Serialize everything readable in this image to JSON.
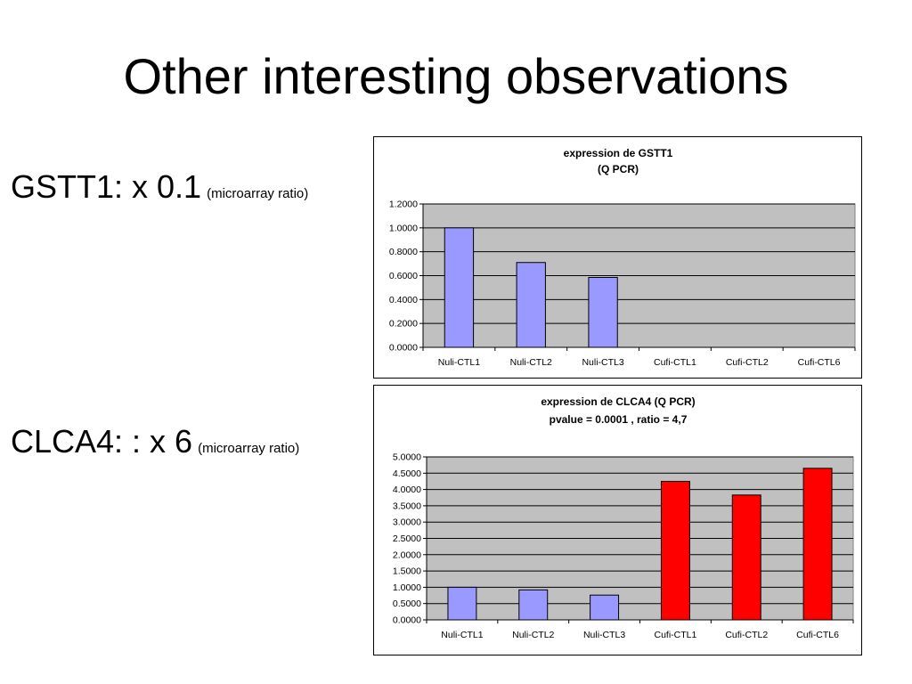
{
  "slide": {
    "title": "Other interesting observations",
    "observations": [
      {
        "label": "GSTT1: x 0.1",
        "note": "(microarray ratio)"
      },
      {
        "label": "CLCA4: : x 6",
        "note": "(microarray ratio)"
      }
    ]
  },
  "chart_data": [
    {
      "type": "bar",
      "title": "expression de GSTT1",
      "subtitle": "(Q PCR)",
      "categories": [
        "Nuli-CTL1",
        "Nuli-CTL2",
        "Nuli-CTL3",
        "Cufi-CTL1",
        "Cufi-CTL2",
        "Cufi-CTL6"
      ],
      "values": [
        1.0,
        0.71,
        0.585,
        0.0,
        0.0,
        0.0
      ],
      "bar_colors": [
        "#9999ff",
        "#9999ff",
        "#9999ff",
        "#9999ff",
        "#9999ff",
        "#9999ff"
      ],
      "ylim": [
        0,
        1.2
      ],
      "yticks": [
        "0.0000",
        "0.2000",
        "0.4000",
        "0.6000",
        "0.8000",
        "1.0000",
        "1.2000"
      ],
      "grid": true,
      "legend": "none",
      "plot_background": "#c0c0c0"
    },
    {
      "type": "bar",
      "title": "expression de CLCA4 (Q PCR)",
      "subtitle": "pvalue = 0.0001 , ratio = 4,7",
      "categories": [
        "Nuli-CTL1",
        "Nuli-CTL2",
        "Nuli-CTL3",
        "Cufi-CTL1",
        "Cufi-CTL2",
        "Cufi-CTL6"
      ],
      "values": [
        1.0,
        0.92,
        0.76,
        4.25,
        3.83,
        4.65
      ],
      "bar_colors": [
        "#9999ff",
        "#9999ff",
        "#9999ff",
        "#ff0000",
        "#ff0000",
        "#ff0000"
      ],
      "ylim": [
        0,
        5
      ],
      "yticks": [
        "0.0000",
        "0.5000",
        "1.0000",
        "1.5000",
        "2.0000",
        "2.5000",
        "3.0000",
        "3.5000",
        "4.0000",
        "4.5000",
        "5.0000"
      ],
      "grid": true,
      "legend": "none",
      "plot_background": "#c0c0c0"
    }
  ]
}
